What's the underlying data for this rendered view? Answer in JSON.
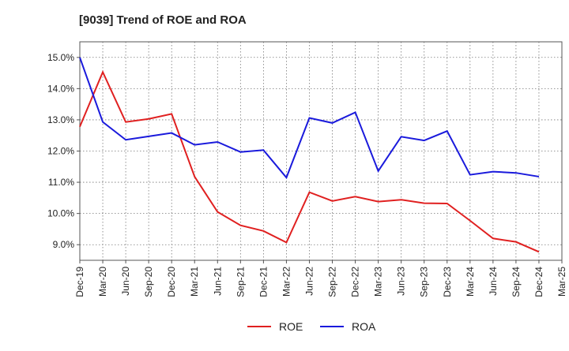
{
  "chart_data": {
    "type": "line",
    "title": "[9039]  Trend of ROE and ROA",
    "xlabel": "",
    "ylabel": "",
    "categories": [
      "Dec-19",
      "Mar-20",
      "Jun-20",
      "Sep-20",
      "Dec-20",
      "Mar-21",
      "Jun-21",
      "Sep-21",
      "Dec-21",
      "Mar-22",
      "Jun-22",
      "Sep-22",
      "Dec-22",
      "Mar-23",
      "Jun-23",
      "Sep-23",
      "Dec-23",
      "Mar-24",
      "Jun-24",
      "Sep-24",
      "Dec-24",
      "Mar-25"
    ],
    "y_tick_labels": [
      "9.0%",
      "10.0%",
      "11.0%",
      "12.0%",
      "13.0%",
      "14.0%",
      "15.0%"
    ],
    "y_ticks": [
      9,
      10,
      11,
      12,
      13,
      14,
      15
    ],
    "ylim": [
      8.5,
      15.5
    ],
    "grid": true,
    "legend_position": "bottom-center",
    "series": [
      {
        "name": "ROE",
        "color": "#e02020",
        "values": [
          12.78,
          14.53,
          12.93,
          13.03,
          13.19,
          11.18,
          10.05,
          9.62,
          9.44,
          9.07,
          10.68,
          10.4,
          10.54,
          10.38,
          10.44,
          10.33,
          10.32,
          9.77,
          9.2,
          9.09,
          8.77,
          null
        ]
      },
      {
        "name": "ROA",
        "color": "#1a1adc",
        "values": [
          15.0,
          12.93,
          12.36,
          12.47,
          12.58,
          12.2,
          12.29,
          11.97,
          12.03,
          11.15,
          13.06,
          12.9,
          13.24,
          11.36,
          12.46,
          12.34,
          12.64,
          11.24,
          11.34,
          11.3,
          11.18,
          null
        ]
      }
    ]
  }
}
